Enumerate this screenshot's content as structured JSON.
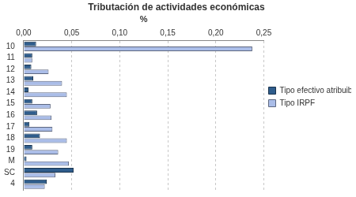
{
  "chart_data": {
    "type": "bar",
    "title": "Tributación de actividades económicas",
    "xlabel": "%",
    "orientation": "horizontal",
    "categories": [
      "10",
      "11",
      "12",
      "13",
      "14",
      "15",
      "16",
      "17",
      "18",
      "19",
      "M",
      "SC",
      "4"
    ],
    "series": [
      {
        "name": "Tipo efectivo atribuible",
        "color": "#2f5d8c",
        "values": [
          0.013,
          0.009,
          0.008,
          0.01,
          0.005,
          0.009,
          0.014,
          0.006,
          0.017,
          0.009,
          0.003,
          0.052,
          0.024
        ]
      },
      {
        "name": "Tipo IRPF",
        "color": "#aabde8",
        "values": [
          0.238,
          0.009,
          0.026,
          0.04,
          0.045,
          0.028,
          0.029,
          0.03,
          0.045,
          0.036,
          0.047,
          0.033,
          0.022
        ]
      }
    ],
    "xlim": [
      0,
      0.25
    ],
    "xticks": [
      {
        "value": 0,
        "label": "0,00"
      },
      {
        "value": 0.05,
        "label": "0,05"
      },
      {
        "value": 0.1,
        "label": "0,10"
      },
      {
        "value": 0.15,
        "label": "0,15"
      },
      {
        "value": 0.2,
        "label": "0,20"
      },
      {
        "value": 0.25,
        "label": "0,25"
      }
    ],
    "grid": true,
    "legend": "right"
  }
}
